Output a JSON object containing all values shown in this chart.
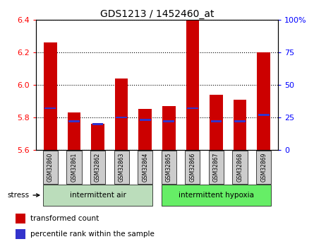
{
  "title": "GDS1213 / 1452460_at",
  "samples": [
    "GSM32860",
    "GSM32861",
    "GSM32862",
    "GSM32863",
    "GSM32864",
    "GSM32865",
    "GSM32866",
    "GSM32867",
    "GSM32868",
    "GSM32869"
  ],
  "red_values": [
    6.26,
    5.83,
    5.76,
    6.04,
    5.85,
    5.87,
    6.4,
    5.94,
    5.91,
    6.2
  ],
  "blue_values": [
    32,
    22,
    20,
    25,
    23,
    22,
    32,
    22,
    22,
    27
  ],
  "ymin": 5.6,
  "ymax": 6.4,
  "yticks": [
    5.6,
    5.8,
    6.0,
    6.2,
    6.4
  ],
  "right_yticks": [
    0,
    25,
    50,
    75,
    100
  ],
  "right_ylabels": [
    "0",
    "25",
    "50",
    "75",
    "100%"
  ],
  "group1_label": "intermittent air",
  "group2_label": "intermittent hypoxia",
  "group1_indices": [
    0,
    1,
    2,
    3,
    4
  ],
  "group2_indices": [
    5,
    6,
    7,
    8,
    9
  ],
  "stress_label": "stress",
  "legend1_label": "transformed count",
  "legend2_label": "percentile rank within the sample",
  "bar_color": "#CC0000",
  "marker_color": "#3333CC",
  "group1_bg": "#BBDDBB",
  "group2_bg": "#66EE66",
  "tick_label_bg": "#CCCCCC",
  "bar_width": 0.55
}
